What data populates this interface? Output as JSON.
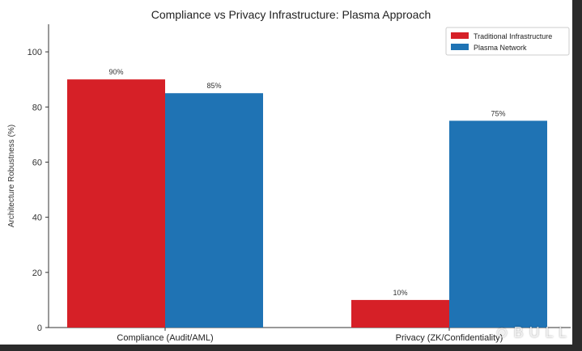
{
  "chart_data": {
    "type": "bar",
    "title": "Compliance vs Privacy Infrastructure: Plasma Approach",
    "ylabel": "Architecture Robustness (%)",
    "xlabel": "",
    "categories": [
      "Compliance (Audit/AML)",
      "Privacy (ZK/Confidentiality)"
    ],
    "series": [
      {
        "name": "Traditional Infrastructure",
        "values": [
          90,
          10
        ],
        "labels": [
          "90%",
          "10%"
        ],
        "color": "#d62027"
      },
      {
        "name": "Plasma Network",
        "values": [
          85,
          75
        ],
        "labels": [
          "85%",
          "75%"
        ],
        "color": "#1f73b4"
      }
    ],
    "ylim": [
      0,
      110
    ],
    "yticks": [
      0,
      20,
      40,
      60,
      80,
      100
    ],
    "grid": false,
    "legend_position": "top-right"
  }
}
